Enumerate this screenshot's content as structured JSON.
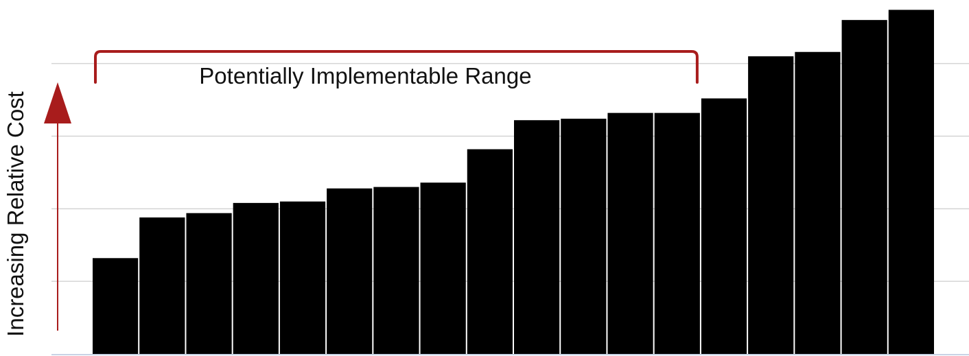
{
  "chart_data": {
    "type": "bar",
    "title": "",
    "xlabel": "",
    "ylabel": "Increasing Relative Cost",
    "categories": [
      "",
      "",
      "",
      "",
      "",
      "",
      "",
      "",
      "",
      "",
      "",
      "",
      "",
      "",
      "",
      "",
      "",
      ""
    ],
    "values": [
      33,
      47,
      48.5,
      52,
      52.5,
      57,
      57.5,
      59,
      70.5,
      80.5,
      81,
      83,
      83,
      88,
      102.5,
      104,
      115,
      118.5
    ],
    "ylim": [
      0,
      120
    ],
    "grid": true,
    "legend": "none",
    "bar_color": "#000000",
    "annotations": [
      {
        "text": "Potentially Implementable Range",
        "type": "bracket",
        "start_index": 0,
        "end_index": 12,
        "color": "#a81c1c"
      }
    ],
    "axis_arrow_color": "#a81c1c"
  }
}
